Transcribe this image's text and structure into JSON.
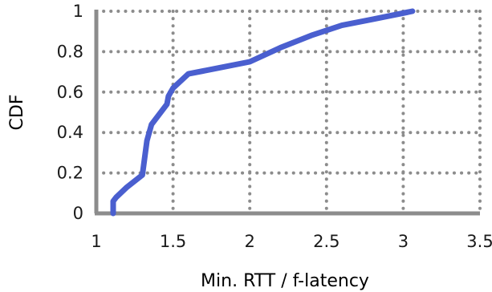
{
  "chart_data": {
    "type": "line",
    "title": "",
    "xlabel": "Min. RTT / f-latency",
    "ylabel": "CDF",
    "xlim": [
      1,
      3.5
    ],
    "ylim": [
      0,
      1
    ],
    "x_ticks": [
      1,
      1.5,
      2,
      2.5,
      3,
      3.5
    ],
    "x_tick_labels": [
      "1",
      "1.5",
      "2",
      "2.5",
      "3",
      "3.5"
    ],
    "y_ticks": [
      0,
      0.2,
      0.4,
      0.6,
      0.8,
      1
    ],
    "y_tick_labels": [
      "0",
      "0.2",
      "0.4",
      "0.6",
      "0.8",
      "1"
    ],
    "grid": true,
    "series": [
      {
        "color": "#4a5fcf",
        "x": [
          1.11,
          1.11,
          1.13,
          1.2,
          1.3,
          1.33,
          1.36,
          1.4,
          1.46,
          1.47,
          1.5,
          1.6,
          1.8,
          2.0,
          2.2,
          2.4,
          2.6,
          2.8,
          3.06
        ],
        "y": [
          0.0,
          0.06,
          0.08,
          0.13,
          0.19,
          0.36,
          0.44,
          0.48,
          0.54,
          0.58,
          0.62,
          0.69,
          0.72,
          0.75,
          0.82,
          0.88,
          0.93,
          0.96,
          1.0
        ]
      }
    ]
  }
}
